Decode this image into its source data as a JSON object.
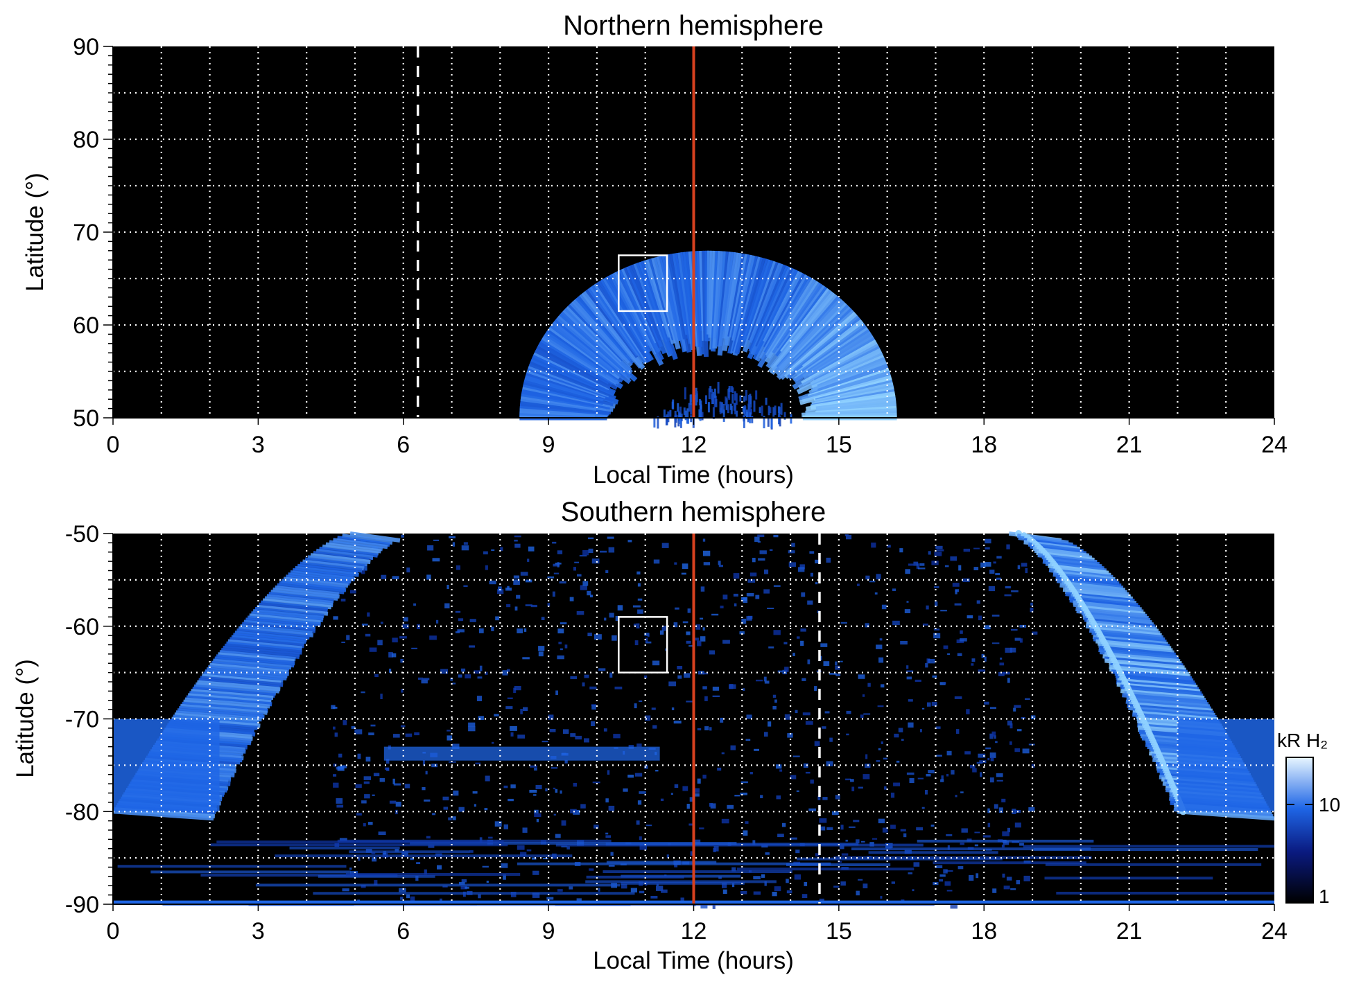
{
  "colors": {
    "background": "#000000",
    "aurora_dim": "#0a2a9a",
    "aurora_mid": "#1f66e6",
    "aurora_bright": "#8fd0ff",
    "noon_line": "#d7411f",
    "grid": "#ffffff"
  },
  "colorbar": {
    "label": "kR H₂",
    "ticks": [
      "10",
      "1"
    ],
    "scale": "log"
  },
  "chart_data": [
    {
      "type": "heatmap",
      "title": "Northern hemisphere",
      "xlabel": "Local Time (hours)",
      "ylabel": "Latitude (°)",
      "xlim": [
        0,
        24
      ],
      "ylim": [
        50,
        90
      ],
      "xticks": [
        "0",
        "3",
        "6",
        "9",
        "12",
        "15",
        "18",
        "21",
        "24"
      ],
      "yticks": [
        "90",
        "80",
        "70",
        "60",
        "50"
      ],
      "grid": true,
      "noon_line_hours": 12,
      "dashed_line_hours": 6.3,
      "box": {
        "lt": [
          10.45,
          11.45
        ],
        "lat": [
          61.5,
          67.5
        ]
      },
      "oval_arc": {
        "center_lt": 12.3,
        "peak_lat": 68,
        "width_lat": 10,
        "lt_range_at_50": [
          8.5,
          16.3
        ]
      },
      "inner_arc": {
        "center_lt": 12.6,
        "peak_lat": 54,
        "lt_range_at_50": [
          11.1,
          14.0
        ]
      }
    },
    {
      "type": "heatmap",
      "title": "Southern hemisphere",
      "xlabel": "Local Time (hours)",
      "ylabel": "Latitude (°)",
      "xlim": [
        0,
        24
      ],
      "ylim": [
        -90,
        -50
      ],
      "xticks": [
        "0",
        "3",
        "6",
        "9",
        "12",
        "15",
        "18",
        "21",
        "24"
      ],
      "yticks": [
        "-50",
        "-60",
        "-70",
        "-80",
        "-90"
      ],
      "grid": true,
      "noon_line_hours": 12,
      "dashed_line_hours": 14.6,
      "box": {
        "lt": [
          10.45,
          11.45
        ],
        "lat": [
          -65,
          -59
        ]
      },
      "dawn_arc": {
        "lt_at_-50": [
          4.9,
          5.9
        ],
        "lt_at_-80": [
          0,
          2
        ]
      },
      "dusk_arc": {
        "lt_at_-50": [
          18.6,
          19.6
        ],
        "lt_at_-80": [
          22,
          24
        ]
      },
      "polar_band_lat": [
        -74.5,
        -73.0
      ],
      "polar_band_lt": [
        5.6,
        11.3
      ]
    }
  ]
}
